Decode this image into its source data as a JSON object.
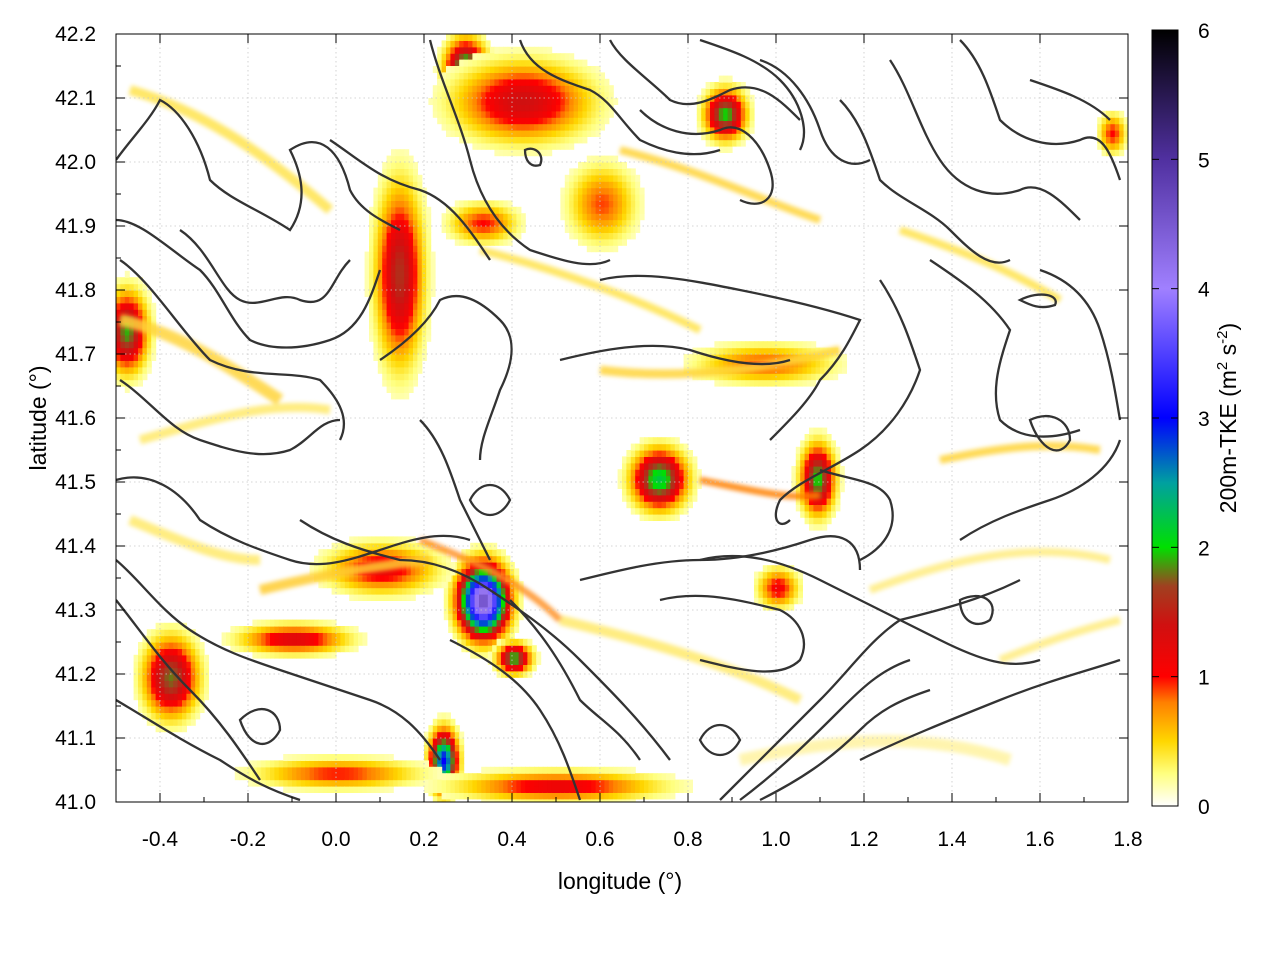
{
  "chart_data": {
    "type": "heatmap",
    "xlabel": "longitude (°)",
    "ylabel": "latitude (°)",
    "colorbar_label": "200m-TKE (m² s⁻²)",
    "colorbar_label_parts": {
      "a": "200m-TKE (m",
      "b": "2",
      "c": " s",
      "d": "-2",
      "e": ")"
    },
    "xlim": [
      -0.5,
      1.8
    ],
    "ylim": [
      41.0,
      42.2
    ],
    "x_ticks": [
      -0.4,
      -0.2,
      0.0,
      0.2,
      0.4,
      0.6,
      0.8,
      1.0,
      1.2,
      1.4,
      1.6,
      1.8
    ],
    "x_tick_labels": [
      "-0.4",
      "-0.2",
      "0.0",
      "0.2",
      "0.4",
      "0.6",
      "0.8",
      "1.0",
      "1.2",
      "1.4",
      "1.6",
      "1.8"
    ],
    "y_ticks": [
      41.0,
      41.1,
      41.2,
      41.3,
      41.4,
      41.5,
      41.6,
      41.7,
      41.8,
      41.9,
      42.0,
      42.1,
      42.2
    ],
    "y_tick_labels": [
      "41.0",
      "41.1",
      "41.2",
      "41.3",
      "41.4",
      "41.5",
      "41.6",
      "41.7",
      "41.8",
      "41.9",
      "42.0",
      "42.1",
      "42.2"
    ],
    "colorbar_range": [
      0,
      6
    ],
    "colorbar_ticks": [
      0,
      1,
      2,
      3,
      4,
      5,
      6
    ],
    "colorbar_tick_labels": [
      "0",
      "1",
      "2",
      "3",
      "4",
      "5",
      "6"
    ],
    "colormap": [
      {
        "v": 0.0,
        "c": "#ffffff"
      },
      {
        "v": 0.25,
        "c": "#ffff80"
      },
      {
        "v": 0.5,
        "c": "#ffd700"
      },
      {
        "v": 0.8,
        "c": "#ff8000"
      },
      {
        "v": 1.0,
        "c": "#ff0000"
      },
      {
        "v": 1.4,
        "c": "#d01010"
      },
      {
        "v": 1.7,
        "c": "#a04020"
      },
      {
        "v": 2.0,
        "c": "#00e000"
      },
      {
        "v": 2.5,
        "c": "#00a0a0"
      },
      {
        "v": 3.0,
        "c": "#0000ff"
      },
      {
        "v": 4.0,
        "c": "#a080ff"
      },
      {
        "v": 5.0,
        "c": "#5030a0"
      },
      {
        "v": 6.0,
        "c": "#000000"
      }
    ],
    "grid": true,
    "hotspots": [
      {
        "lon": 0.33,
        "lat": 41.31,
        "peak": 4.6,
        "sx": 0.035,
        "sy": 0.035
      },
      {
        "lon": 0.29,
        "lat": 42.14,
        "peak": 2.3,
        "sx": 0.03,
        "sy": 0.03
      },
      {
        "lon": 0.73,
        "lat": 41.5,
        "peak": 2.2,
        "sx": 0.04,
        "sy": 0.03
      },
      {
        "lon": 1.09,
        "lat": 41.5,
        "peak": 2.0,
        "sx": 0.025,
        "sy": 0.035
      },
      {
        "lon": 0.88,
        "lat": 42.07,
        "peak": 2.0,
        "sx": 0.03,
        "sy": 0.025
      },
      {
        "lon": 0.24,
        "lat": 41.06,
        "peak": 3.0,
        "sx": 0.02,
        "sy": 0.03
      },
      {
        "lon": 0.4,
        "lat": 41.22,
        "peak": 2.0,
        "sx": 0.025,
        "sy": 0.015
      },
      {
        "lon": -0.38,
        "lat": 41.19,
        "peak": 1.8,
        "sx": 0.04,
        "sy": 0.04
      },
      {
        "lon": -0.48,
        "lat": 41.73,
        "peak": 1.9,
        "sx": 0.03,
        "sy": 0.04
      },
      {
        "lon": 0.14,
        "lat": 41.82,
        "peak": 1.6,
        "sx": 0.035,
        "sy": 0.09
      },
      {
        "lon": 0.42,
        "lat": 42.09,
        "peak": 1.4,
        "sx": 0.1,
        "sy": 0.04
      },
      {
        "lon": 0.1,
        "lat": 41.36,
        "peak": 1.2,
        "sx": 0.08,
        "sy": 0.025
      },
      {
        "lon": -0.1,
        "lat": 41.25,
        "peak": 1.3,
        "sx": 0.08,
        "sy": 0.015
      },
      {
        "lon": 0.0,
        "lat": 41.04,
        "peak": 1.0,
        "sx": 0.12,
        "sy": 0.015
      },
      {
        "lon": 0.5,
        "lat": 41.02,
        "peak": 1.2,
        "sx": 0.15,
        "sy": 0.015
      },
      {
        "lon": 1.0,
        "lat": 41.33,
        "peak": 1.1,
        "sx": 0.03,
        "sy": 0.02
      },
      {
        "lon": 1.76,
        "lat": 42.04,
        "peak": 1.0,
        "sx": 0.02,
        "sy": 0.02
      },
      {
        "lon": 0.97,
        "lat": 41.68,
        "peak": 0.9,
        "sx": 0.1,
        "sy": 0.02
      },
      {
        "lon": 0.6,
        "lat": 41.93,
        "peak": 0.9,
        "sx": 0.05,
        "sy": 0.04
      },
      {
        "lon": 0.33,
        "lat": 41.9,
        "peak": 1.0,
        "sx": 0.05,
        "sy": 0.02
      }
    ]
  }
}
